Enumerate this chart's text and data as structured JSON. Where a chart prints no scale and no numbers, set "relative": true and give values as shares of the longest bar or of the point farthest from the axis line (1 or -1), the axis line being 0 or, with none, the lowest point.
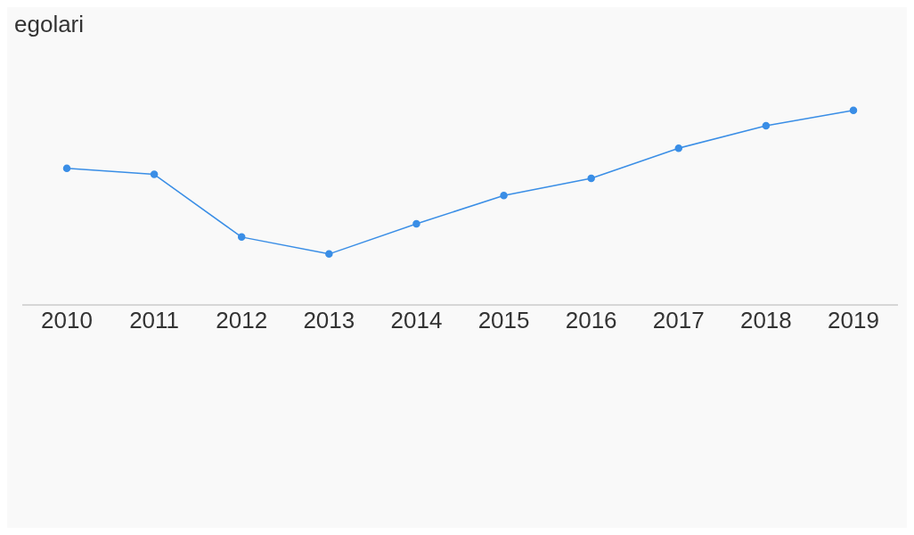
{
  "chart_data": {
    "type": "line",
    "ylabel": "egolari",
    "relative": true,
    "categories": [
      "2010",
      "2011",
      "2012",
      "2013",
      "2014",
      "2015",
      "2016",
      "2017",
      "2018",
      "2019"
    ],
    "series": [
      {
        "color": "#3a8ee6",
        "values": [
          0.702,
          0.671,
          0.349,
          0.262,
          0.417,
          0.563,
          0.651,
          0.806,
          0.921,
          1
        ]
      }
    ],
    "marker": "circle",
    "grid": false,
    "legend": false
  }
}
